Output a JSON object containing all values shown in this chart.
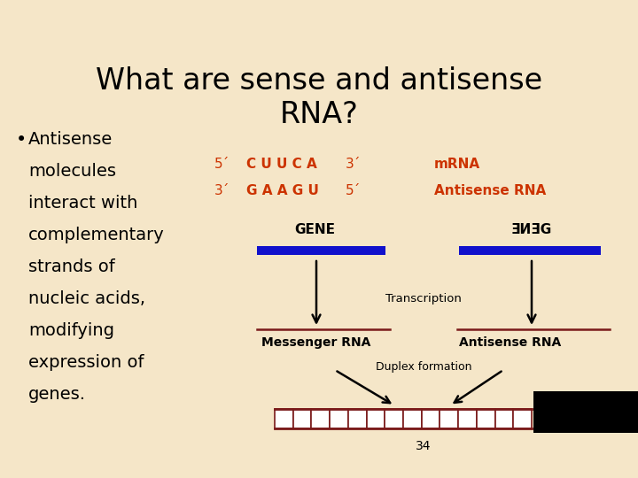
{
  "title": "What are sense and antisense\nRNA?",
  "title_fontsize": 24,
  "bg_color": "#f5e6c8",
  "bullet_lines": [
    "Antisense",
    "molecules",
    "interact with",
    "complementary",
    "strands of",
    "nucleic acids,",
    "modifying",
    "expression of",
    "genes."
  ],
  "seq_line1_left": "5´",
  "seq_line1_seq": "C U U C A",
  "seq_line1_right": "3´",
  "seq_line1_label": "mRNA",
  "seq_line2_left": "3´",
  "seq_line2_seq": "G A A G U",
  "seq_line2_right": "5´",
  "seq_line2_label": "Antisense RNA",
  "seq_color": "#cc3300",
  "gene_label_left": "GENE",
  "gene_label_right": "ƎИƎG",
  "blue_bar_color": "#1111cc",
  "mrna_label": "Messenger RNA",
  "antisense_label": "Antisense RNA",
  "transcription_label": "Transcription",
  "duplex_label": "Duplex formation",
  "page_num": "34",
  "black_box_color": "#000000",
  "dark_red_color": "#7a1a1a"
}
